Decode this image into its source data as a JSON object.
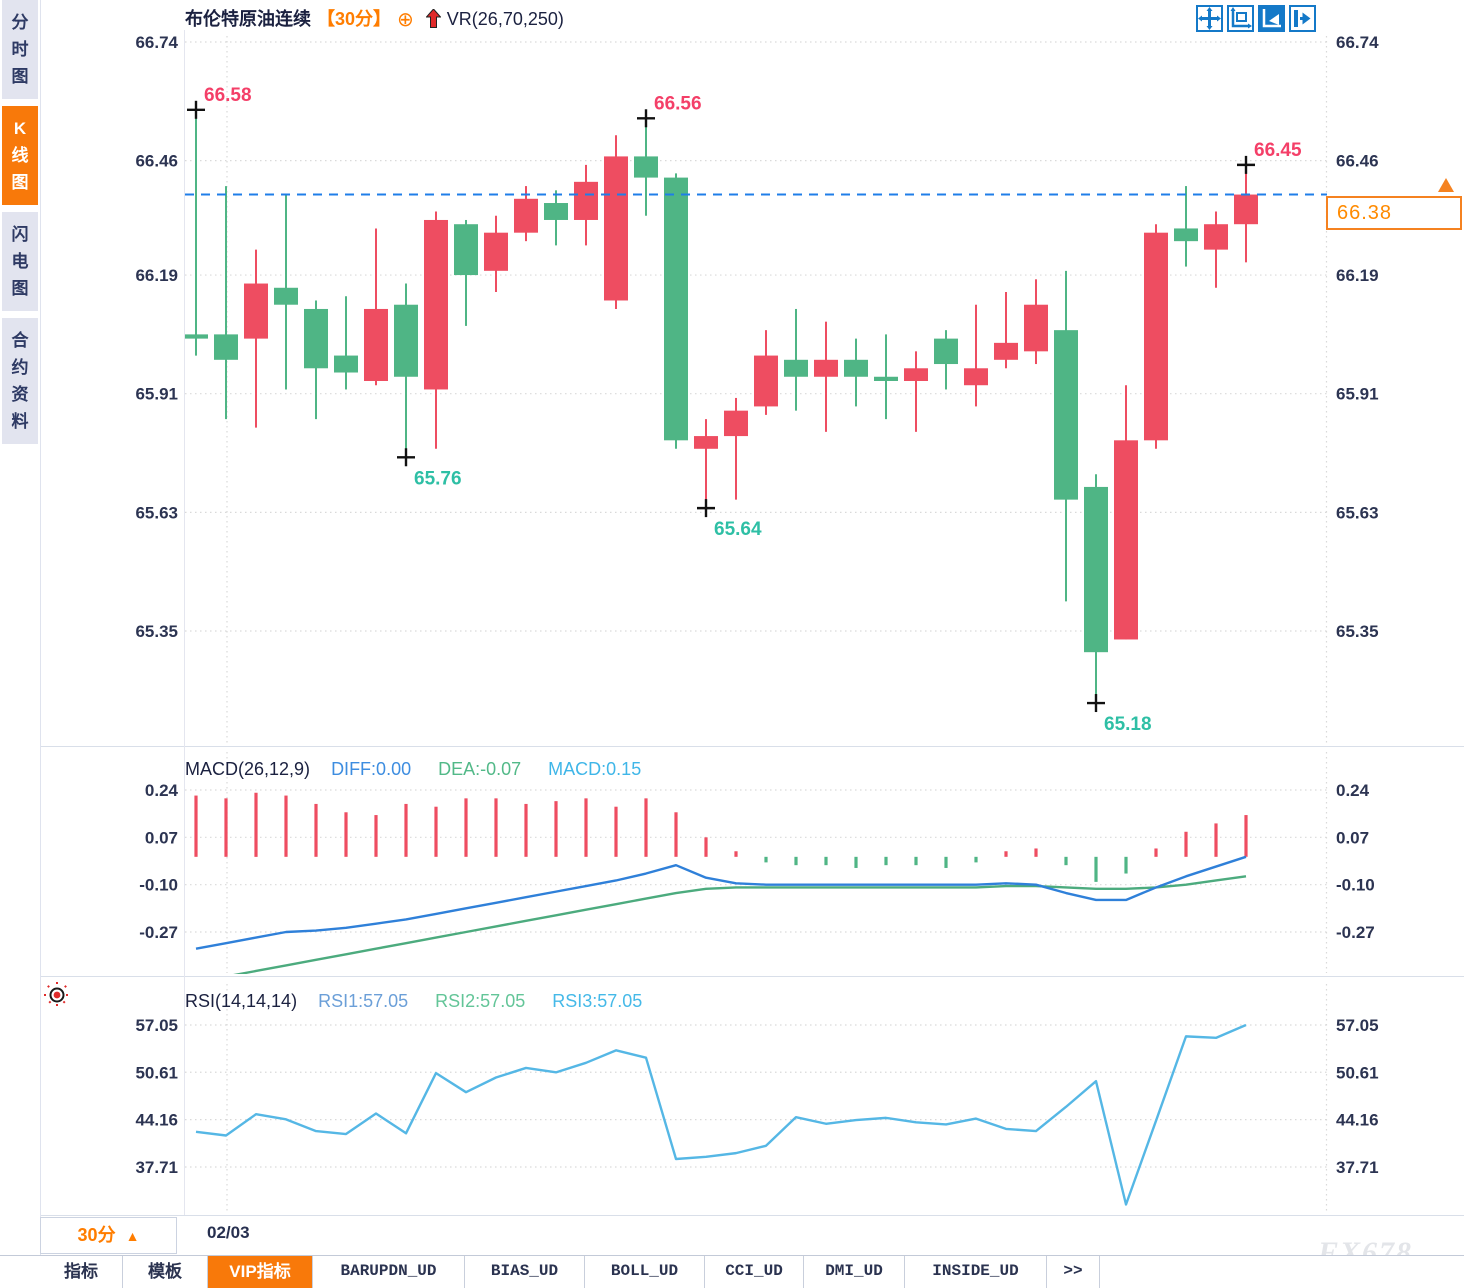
{
  "header": {
    "title": "布伦特原油连续",
    "period_tag": "【30分】",
    "plus_icon": "⊕",
    "indicator": "VR(26,70,250)"
  },
  "sidebar": {
    "items": [
      {
        "label": "分时图",
        "active": false
      },
      {
        "label": "K线图",
        "active": true
      },
      {
        "label": "闪电图",
        "active": false
      },
      {
        "label": "合约资料",
        "active": false
      }
    ]
  },
  "toolbar_icons": [
    "pan-tool",
    "axis-range-tool",
    "pointer-tool",
    "collapse-right-tool"
  ],
  "price_tag": {
    "value": "66.38"
  },
  "bottom": {
    "period_label": "30分",
    "period_arrow": "▲",
    "date_label": "02/03"
  },
  "bottom_tabs": [
    {
      "label": "指标",
      "active": false
    },
    {
      "label": "模板",
      "active": false
    },
    {
      "label": "VIP指标",
      "active": true
    },
    {
      "label": "BARUPDN_UD",
      "active": false
    },
    {
      "label": "BIAS_UD",
      "active": false
    },
    {
      "label": "BOLL_UD",
      "active": false
    },
    {
      "label": "CCI_UD",
      "active": false
    },
    {
      "label": "DMI_UD",
      "active": false
    },
    {
      "label": "INSIDE_UD",
      "active": false
    },
    {
      "label": ">>",
      "active": false
    }
  ],
  "watermark": "FX678",
  "colors": {
    "up": "#ee4d61",
    "down": "#4fb585",
    "grid": "#d9d9d9",
    "axis_text": "#2c3452",
    "last_price_line": "#1f7ee8",
    "high_label": "#f43f68",
    "low_label": "#2ebfa5",
    "marker_cross": "#111111",
    "diff_line": "#2f80d9",
    "dea_line": "#4cab7e",
    "rsi_line": "#55b7e5",
    "hist_pos": "#ee4d61",
    "hist_neg": "#4fb585",
    "accent_orange": "#f8790a",
    "icon_blue": "#1479c8"
  },
  "chart_data": [
    {
      "type": "candlestick",
      "title": "布伦特原油连续 30分",
      "y_ticks": [
        "66.74",
        "66.46",
        "66.19",
        "65.91",
        "65.63",
        "65.35"
      ],
      "ylim": [
        65.08,
        66.77
      ],
      "last_price": 66.38,
      "candles": [
        [
          66.05,
          66.58,
          66.0,
          66.04
        ],
        [
          66.05,
          66.4,
          65.85,
          65.99
        ],
        [
          66.04,
          66.25,
          65.83,
          66.17
        ],
        [
          66.16,
          66.38,
          65.92,
          66.12
        ],
        [
          66.11,
          66.13,
          65.85,
          65.97
        ],
        [
          66.0,
          66.14,
          65.92,
          65.96
        ],
        [
          65.94,
          66.3,
          65.93,
          66.11
        ],
        [
          66.12,
          66.17,
          65.76,
          65.95
        ],
        [
          65.92,
          66.34,
          65.78,
          66.32
        ],
        [
          66.31,
          66.32,
          66.07,
          66.19
        ],
        [
          66.2,
          66.33,
          66.15,
          66.29
        ],
        [
          66.29,
          66.4,
          66.27,
          66.37
        ],
        [
          66.36,
          66.39,
          66.26,
          66.32
        ],
        [
          66.32,
          66.45,
          66.26,
          66.41
        ],
        [
          66.13,
          66.52,
          66.11,
          66.47
        ],
        [
          66.47,
          66.56,
          66.33,
          66.42
        ],
        [
          66.42,
          66.43,
          65.78,
          65.8
        ],
        [
          65.78,
          65.85,
          65.64,
          65.81
        ],
        [
          65.81,
          65.9,
          65.66,
          65.87
        ],
        [
          65.88,
          66.06,
          65.86,
          66.0
        ],
        [
          65.99,
          66.11,
          65.87,
          65.95
        ],
        [
          65.95,
          66.08,
          65.82,
          65.99
        ],
        [
          65.99,
          66.04,
          65.88,
          65.95
        ],
        [
          65.95,
          66.05,
          65.85,
          65.94
        ],
        [
          65.94,
          66.01,
          65.82,
          65.97
        ],
        [
          66.04,
          66.06,
          65.92,
          65.98
        ],
        [
          65.93,
          66.12,
          65.88,
          65.97
        ],
        [
          65.99,
          66.15,
          65.97,
          66.03
        ],
        [
          66.01,
          66.18,
          65.98,
          66.12
        ],
        [
          66.06,
          66.2,
          65.42,
          65.66
        ],
        [
          65.69,
          65.72,
          65.18,
          65.3
        ],
        [
          65.33,
          65.93,
          65.33,
          65.8
        ],
        [
          65.8,
          66.31,
          65.78,
          66.29
        ],
        [
          66.3,
          66.4,
          66.21,
          66.27
        ],
        [
          66.25,
          66.34,
          66.16,
          66.31
        ],
        [
          66.31,
          66.45,
          66.22,
          66.38
        ]
      ],
      "annotations": [
        {
          "index": 0,
          "side": "high",
          "value": "66.58"
        },
        {
          "index": 15,
          "side": "high",
          "value": "66.56"
        },
        {
          "index": 35,
          "side": "high",
          "value": "66.45"
        },
        {
          "index": 7,
          "side": "low",
          "value": "65.76"
        },
        {
          "index": 17,
          "side": "low",
          "value": "65.64"
        },
        {
          "index": 30,
          "side": "low",
          "value": "65.18"
        }
      ]
    },
    {
      "type": "macd",
      "params_label": "MACD(26,12,9)",
      "legend": [
        {
          "label": "DIFF:0.00",
          "color": "#3d8de0"
        },
        {
          "label": "DEA:-0.07",
          "color": "#52b988"
        },
        {
          "label": "MACD:0.15",
          "color": "#3fb6e8"
        }
      ],
      "y_ticks": [
        "0.24",
        "0.07",
        "-0.10",
        "-0.27"
      ],
      "hist": [
        0.22,
        0.21,
        0.23,
        0.22,
        0.19,
        0.16,
        0.15,
        0.19,
        0.18,
        0.21,
        0.21,
        0.19,
        0.2,
        0.21,
        0.18,
        0.21,
        0.16,
        0.07,
        0.02,
        -0.02,
        -0.03,
        -0.03,
        -0.04,
        -0.03,
        -0.03,
        -0.04,
        -0.02,
        0.02,
        0.03,
        -0.03,
        -0.09,
        -0.06,
        0.03,
        0.09,
        0.12,
        0.15
      ],
      "diff": [
        -0.33,
        -0.31,
        -0.29,
        -0.27,
        -0.265,
        -0.255,
        -0.24,
        -0.225,
        -0.205,
        -0.185,
        -0.165,
        -0.145,
        -0.125,
        -0.105,
        -0.085,
        -0.06,
        -0.03,
        -0.075,
        -0.095,
        -0.1,
        -0.1,
        -0.1,
        -0.1,
        -0.1,
        -0.1,
        -0.1,
        -0.1,
        -0.095,
        -0.1,
        -0.13,
        -0.155,
        -0.155,
        -0.11,
        -0.07,
        -0.035,
        0.0
      ],
      "dea": [
        -0.45,
        -0.43,
        -0.41,
        -0.39,
        -0.37,
        -0.35,
        -0.33,
        -0.31,
        -0.29,
        -0.27,
        -0.25,
        -0.23,
        -0.21,
        -0.19,
        -0.17,
        -0.15,
        -0.13,
        -0.115,
        -0.11,
        -0.11,
        -0.11,
        -0.11,
        -0.11,
        -0.11,
        -0.11,
        -0.11,
        -0.11,
        -0.105,
        -0.105,
        -0.11,
        -0.115,
        -0.115,
        -0.11,
        -0.1,
        -0.085,
        -0.07
      ]
    },
    {
      "type": "line",
      "params_label": "RSI(14,14,14)",
      "legend": [
        {
          "label": "RSI1:57.05",
          "color": "#6b9fd8"
        },
        {
          "label": "RSI2:57.05",
          "color": "#63c598"
        },
        {
          "label": "RSI3:57.05",
          "color": "#45b9e8"
        }
      ],
      "y_ticks": [
        "57.05",
        "50.61",
        "44.16",
        "37.71"
      ],
      "rsi": [
        42.5,
        42.0,
        44.9,
        44.2,
        42.6,
        42.2,
        45.0,
        42.3,
        50.5,
        47.9,
        49.9,
        51.2,
        50.6,
        51.9,
        53.6,
        52.6,
        38.8,
        39.1,
        39.6,
        40.6,
        44.5,
        43.6,
        44.1,
        44.4,
        43.8,
        43.5,
        44.3,
        42.9,
        42.6,
        45.9,
        49.4,
        32.6,
        44.0,
        55.5,
        55.3,
        57.05
      ]
    }
  ]
}
